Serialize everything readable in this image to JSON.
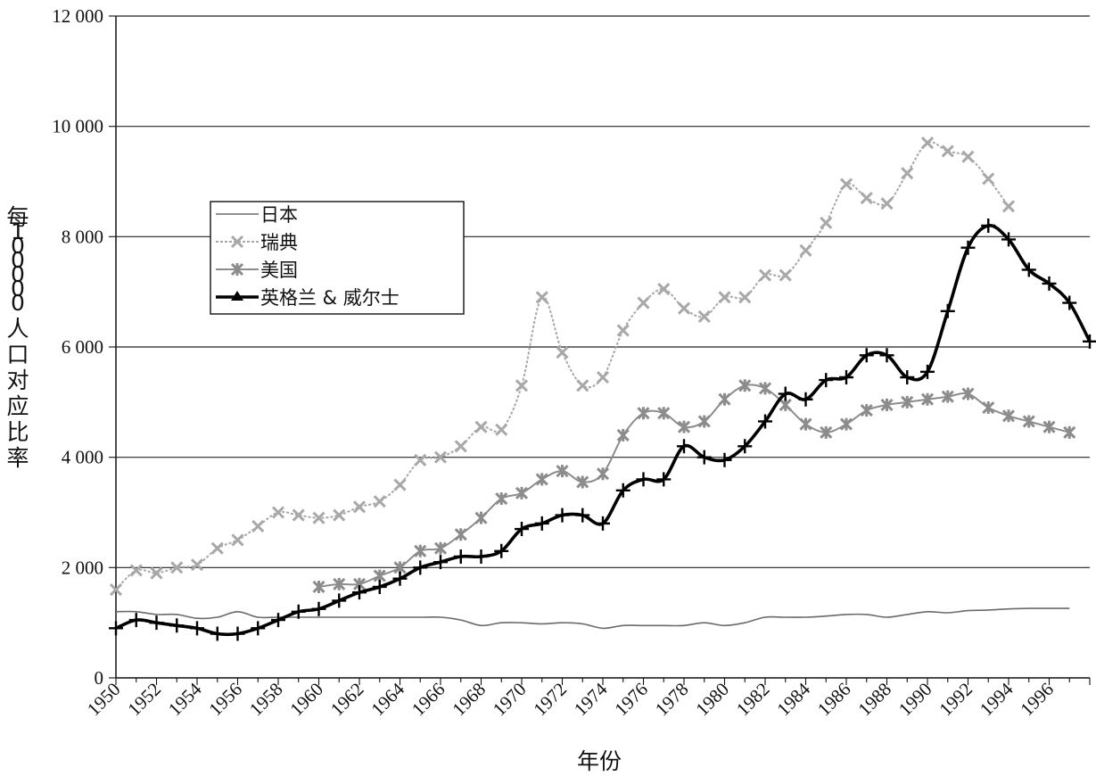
{
  "chart_data": {
    "type": "line",
    "title": "",
    "xlabel": "年份",
    "ylabel": "每 100 000 人口对应比率",
    "xlim": [
      1950,
      1998
    ],
    "ylim": [
      0,
      12000
    ],
    "y_ticks": [
      "0",
      "2 000",
      "4 000",
      "6 000",
      "8 000",
      "10 000",
      "12 000"
    ],
    "y_tick_values": [
      0,
      2000,
      4000,
      6000,
      8000,
      10000,
      12000
    ],
    "x_ticks": [
      "1950",
      "1952",
      "1954",
      "1956",
      "1958",
      "1960",
      "1962",
      "1964",
      "1966",
      "1968",
      "1970",
      "1972",
      "1974",
      "1976",
      "1978",
      "1980",
      "1982",
      "1984",
      "1986",
      "1988",
      "1990",
      "1992",
      "1994",
      "1996"
    ],
    "x_tick_values": [
      1950,
      1952,
      1954,
      1956,
      1958,
      1960,
      1962,
      1964,
      1966,
      1968,
      1970,
      1972,
      1974,
      1976,
      1978,
      1980,
      1982,
      1984,
      1986,
      1988,
      1990,
      1992,
      1994,
      1996
    ],
    "grid": "horizontal",
    "legend_position": "left",
    "series": [
      {
        "name": "日本",
        "color": "#6a6a6a",
        "marker": "none",
        "x": [
          1950,
          1951,
          1952,
          1953,
          1954,
          1955,
          1956,
          1957,
          1958,
          1959,
          1960,
          1961,
          1962,
          1963,
          1964,
          1965,
          1966,
          1967,
          1968,
          1969,
          1970,
          1971,
          1972,
          1973,
          1974,
          1975,
          1976,
          1977,
          1978,
          1979,
          1980,
          1981,
          1982,
          1983,
          1984,
          1985,
          1986,
          1987,
          1988,
          1989,
          1990,
          1991,
          1992,
          1993,
          1994,
          1995,
          1996,
          1997
        ],
        "values": [
          1200,
          1200,
          1150,
          1150,
          1080,
          1100,
          1200,
          1100,
          1100,
          1100,
          1100,
          1100,
          1100,
          1100,
          1100,
          1100,
          1100,
          1050,
          950,
          1000,
          1000,
          980,
          1000,
          980,
          900,
          950,
          950,
          950,
          950,
          1000,
          950,
          1000,
          1100,
          1100,
          1100,
          1120,
          1150,
          1150,
          1100,
          1150,
          1200,
          1180,
          1220,
          1230,
          1250,
          1260,
          1260,
          1260
        ]
      },
      {
        "name": "瑞典",
        "color": "#a8a8a8",
        "marker": "x",
        "x": [
          1950,
          1951,
          1952,
          1953,
          1954,
          1955,
          1956,
          1957,
          1958,
          1959,
          1960,
          1961,
          1962,
          1963,
          1964,
          1965,
          1966,
          1967,
          1968,
          1969,
          1970,
          1971,
          1972,
          1973,
          1974,
          1975,
          1976,
          1977,
          1978,
          1979,
          1980,
          1981,
          1982,
          1983,
          1984,
          1985,
          1986,
          1987,
          1988,
          1989,
          1990,
          1991,
          1992,
          1993,
          1994,
          1995
        ],
        "values": [
          1600,
          1950,
          1900,
          2000,
          2050,
          2350,
          2500,
          2750,
          3000,
          2950,
          2900,
          2950,
          3100,
          3200,
          3500,
          3950,
          4000,
          4200,
          4550,
          4500,
          5300,
          6900,
          5900,
          5300,
          5450,
          6300,
          6800,
          7050,
          6700,
          6550,
          6900,
          6900,
          7300,
          7300,
          7750,
          8250,
          8950,
          8700,
          8600,
          9150,
          9700,
          9550,
          9450,
          9050,
          8550,
          null
        ]
      },
      {
        "name": "美国",
        "color": "#8c8c8c",
        "marker": "star",
        "x": [
          1960,
          1961,
          1962,
          1963,
          1964,
          1965,
          1966,
          1967,
          1968,
          1969,
          1970,
          1971,
          1972,
          1973,
          1974,
          1975,
          1976,
          1977,
          1978,
          1979,
          1980,
          1981,
          1982,
          1983,
          1984,
          1985,
          1986,
          1987,
          1988,
          1989,
          1990,
          1991,
          1992,
          1993,
          1994,
          1995,
          1996,
          1997
        ],
        "values": [
          1650,
          1700,
          1700,
          1850,
          2000,
          2300,
          2350,
          2600,
          2900,
          3250,
          3350,
          3600,
          3750,
          3550,
          3700,
          4400,
          4800,
          4800,
          4550,
          4650,
          5050,
          5300,
          5250,
          4950,
          4600,
          4450,
          4600,
          4850,
          4950,
          5000,
          5050,
          5100,
          5150,
          4900,
          4750,
          4650,
          4550,
          4450
        ]
      },
      {
        "name": "英格兰 & 威尔士",
        "color": "#000000",
        "marker": "plus",
        "x": [
          1950,
          1951,
          1952,
          1953,
          1954,
          1955,
          1956,
          1957,
          1958,
          1959,
          1960,
          1961,
          1962,
          1963,
          1964,
          1965,
          1966,
          1967,
          1968,
          1969,
          1970,
          1971,
          1972,
          1973,
          1974,
          1975,
          1976,
          1977,
          1978,
          1979,
          1980,
          1981,
          1982,
          1983,
          1984,
          1985,
          1986,
          1987,
          1988,
          1989,
          1990,
          1991,
          1992,
          1993,
          1994,
          1995,
          1996,
          1997,
          1998
        ],
        "values": [
          900,
          1050,
          1000,
          950,
          900,
          800,
          800,
          900,
          1050,
          1200,
          1250,
          1400,
          1550,
          1650,
          1800,
          2000,
          2100,
          2200,
          2200,
          2300,
          2700,
          2800,
          2950,
          2950,
          2800,
          3400,
          3600,
          3600,
          4200,
          4000,
          3950,
          4200,
          4650,
          5150,
          5050,
          5400,
          5450,
          5850,
          5850,
          5450,
          5550,
          6650,
          7800,
          8200,
          7950,
          7400,
          7150,
          6800,
          6100
        ]
      }
    ]
  }
}
